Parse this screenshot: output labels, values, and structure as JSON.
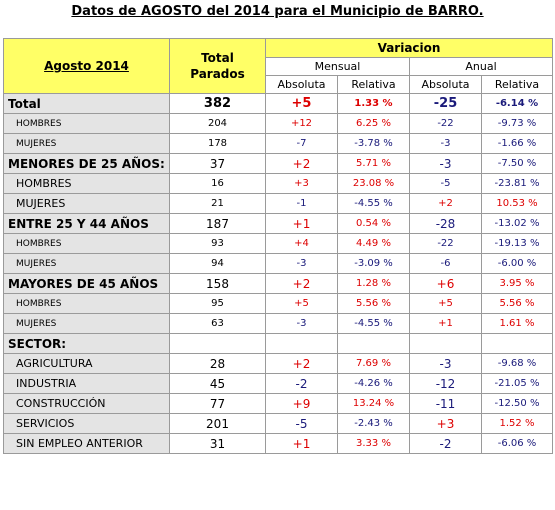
{
  "title": "Datos de AGOSTO del 2014 para el Municipio de BARRO.",
  "header": {
    "period": "Agosto 2014",
    "total_parados": "Total Parados",
    "variacion": "Variacion",
    "mensual": "Mensual",
    "anual": "Anual",
    "absoluta": "Absoluta",
    "relativa": "Relativa"
  },
  "rows": [
    {
      "label": "Total",
      "total": "382",
      "m_abs": "+5",
      "m_rel": "1.33 %",
      "a_abs": "-25",
      "a_rel": "-6.14 %"
    },
    {
      "label": "HOMBRES",
      "total": "204",
      "m_abs": "+12",
      "m_rel": "6.25 %",
      "a_abs": "-22",
      "a_rel": "-9.73 %"
    },
    {
      "label": "MUJERES",
      "total": "178",
      "m_abs": "-7",
      "m_rel": "-3.78 %",
      "a_abs": "-3",
      "a_rel": "-1.66 %"
    },
    {
      "label": "MENORES DE 25 AÑOS:",
      "total": "37",
      "m_abs": "+2",
      "m_rel": "5.71 %",
      "a_abs": "-3",
      "a_rel": "-7.50 %"
    },
    {
      "label": "HOMBRES",
      "total": "16",
      "m_abs": "+3",
      "m_rel": "23.08 %",
      "a_abs": "-5",
      "a_rel": "-23.81 %"
    },
    {
      "label": "MUJERES",
      "total": "21",
      "m_abs": "-1",
      "m_rel": "-4.55 %",
      "a_abs": "+2",
      "a_rel": "10.53 %"
    },
    {
      "label": "ENTRE 25 Y 44 AÑOS",
      "total": "187",
      "m_abs": "+1",
      "m_rel": "0.54 %",
      "a_abs": "-28",
      "a_rel": "-13.02 %"
    },
    {
      "label": "HOMBRES",
      "total": "93",
      "m_abs": "+4",
      "m_rel": "4.49 %",
      "a_abs": "-22",
      "a_rel": "-19.13 %"
    },
    {
      "label": "MUJERES",
      "total": "94",
      "m_abs": "-3",
      "m_rel": "-3.09 %",
      "a_abs": "-6",
      "a_rel": "-6.00 %"
    },
    {
      "label": "MAYORES DE 45 AÑOS",
      "total": "158",
      "m_abs": "+2",
      "m_rel": "1.28 %",
      "a_abs": "+6",
      "a_rel": "3.95 %"
    },
    {
      "label": "HOMBRES",
      "total": "95",
      "m_abs": "+5",
      "m_rel": "5.56 %",
      "a_abs": "+5",
      "a_rel": "5.56 %"
    },
    {
      "label": "MUJERES",
      "total": "63",
      "m_abs": "-3",
      "m_rel": "-4.55 %",
      "a_abs": "+1",
      "a_rel": "1.61 %"
    },
    {
      "label": "SECTOR:"
    },
    {
      "label": "AGRICULTURA",
      "total": "28",
      "m_abs": "+2",
      "m_rel": "7.69 %",
      "a_abs": "-3",
      "a_rel": "-9.68 %"
    },
    {
      "label": "INDUSTRIA",
      "total": "45",
      "m_abs": "-2",
      "m_rel": "-4.26 %",
      "a_abs": "-12",
      "a_rel": "-21.05 %"
    },
    {
      "label": "CONSTRUCCIÓN",
      "total": "77",
      "m_abs": "+9",
      "m_rel": "13.24 %",
      "a_abs": "-11",
      "a_rel": "-12.50 %"
    },
    {
      "label": "SERVICIOS",
      "total": "201",
      "m_abs": "-5",
      "m_rel": "-2.43 %",
      "a_abs": "+3",
      "a_rel": "1.52 %"
    },
    {
      "label": "SIN EMPLEO ANTERIOR",
      "total": "31",
      "m_abs": "+1",
      "m_rel": "3.33 %",
      "a_abs": "-2",
      "a_rel": "-6.06 %"
    }
  ]
}
